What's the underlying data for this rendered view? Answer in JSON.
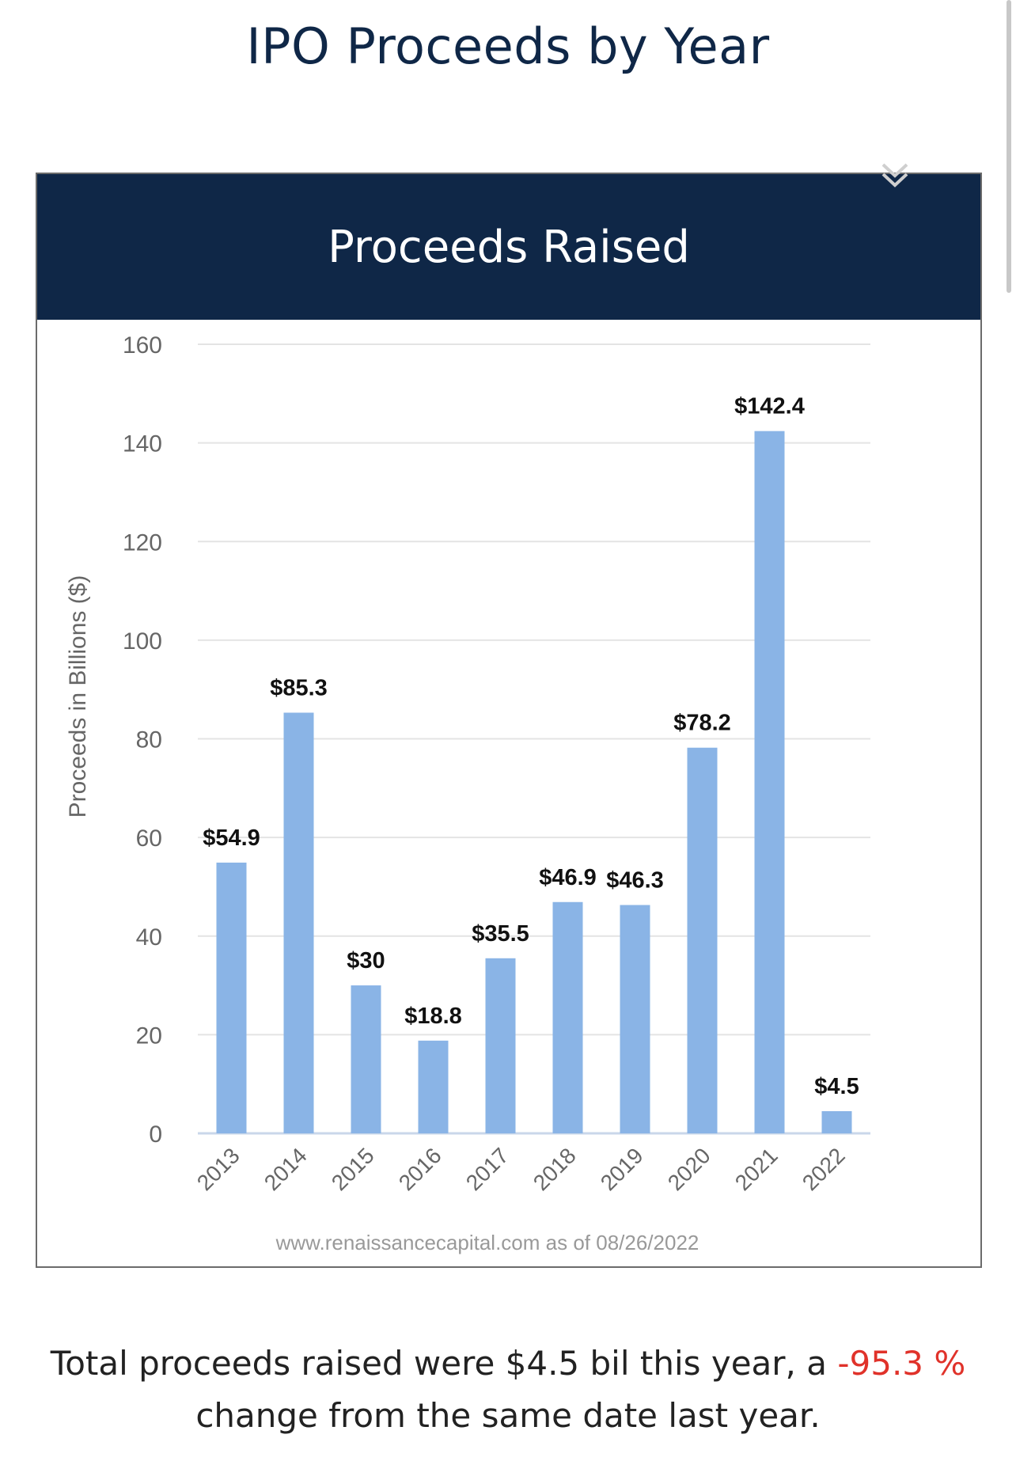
{
  "page": {
    "title": "IPO Proceeds by Year"
  },
  "panel": {
    "header": "Proceeds Raised",
    "source_note": "www.renaissancecapital.com as of 08/26/2022",
    "menu_icon": "chevron-double-down-icon"
  },
  "summary": {
    "prefix": "Total proceeds raised were ",
    "amount": "$4.5 bil",
    "middle": " this year, a ",
    "change": "-95.3 %",
    "suffix": " change from the same date last year."
  },
  "colors": {
    "header_bg": "#0f2747",
    "bar": "#8ab4e6",
    "negative": "#e0322a"
  },
  "chart_data": {
    "type": "bar",
    "title": "Proceeds Raised",
    "xlabel": "",
    "ylabel": "Proceeds in Billions ($)",
    "categories": [
      "2013",
      "2014",
      "2015",
      "2016",
      "2017",
      "2018",
      "2019",
      "2020",
      "2021",
      "2022"
    ],
    "values": [
      54.9,
      85.3,
      30,
      18.8,
      35.5,
      46.9,
      46.3,
      78.2,
      142.4,
      4.5
    ],
    "data_labels": [
      "$54.9",
      "$85.3",
      "$30",
      "$18.8",
      "$35.5",
      "$46.9",
      "$46.3",
      "$78.2",
      "$142.4",
      "$4.5"
    ],
    "yticks": [
      0,
      20,
      40,
      60,
      80,
      100,
      120,
      140,
      160
    ],
    "ylim": [
      0,
      160
    ],
    "grid": true,
    "legend": "none"
  }
}
